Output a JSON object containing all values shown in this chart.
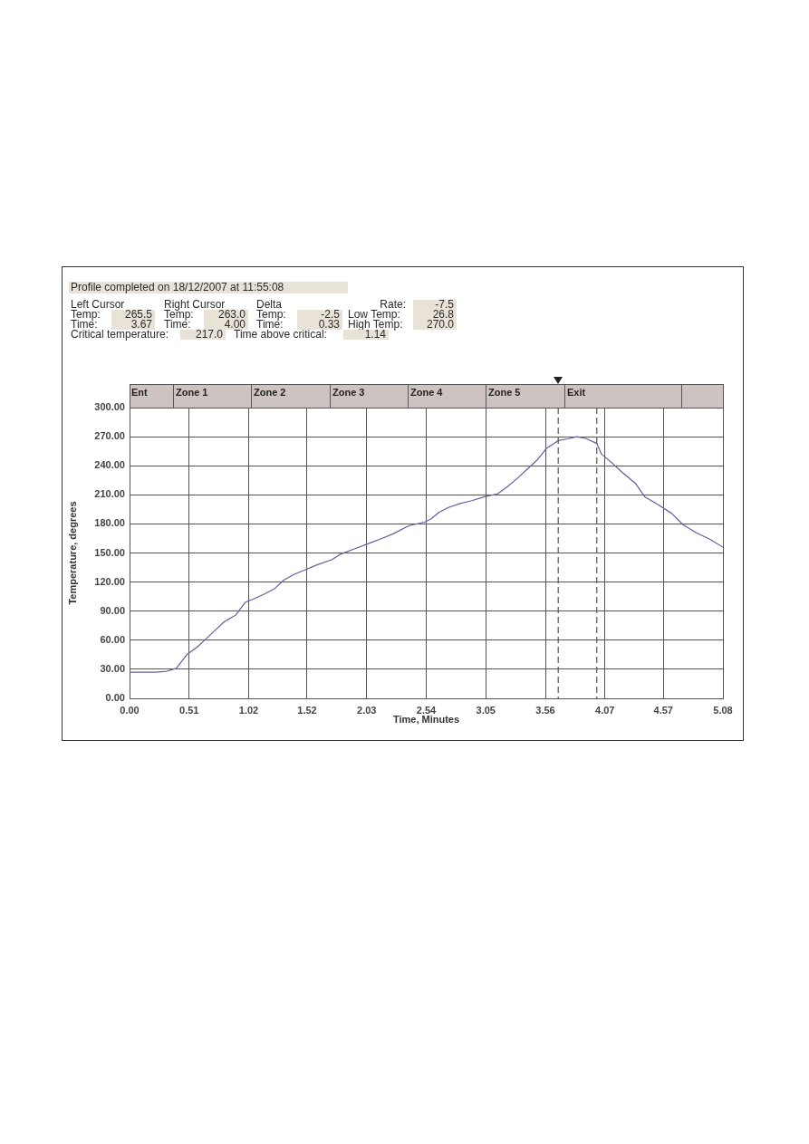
{
  "chart_data": {
    "type": "line",
    "title": "Profile completed on 18/12/2007 at 11:55:08",
    "xlabel": "Time, Minutes",
    "ylabel": "Temperature, degrees",
    "x": [
      0,
      0.22,
      0.32,
      0.4,
      0.49,
      0.58,
      0.66,
      0.73,
      0.81,
      0.91,
      0.99,
      1.07,
      1.16,
      1.24,
      1.32,
      1.41,
      1.51,
      1.61,
      1.73,
      1.81,
      1.92,
      2.03,
      2.16,
      2.26,
      2.39,
      2.53,
      2.58,
      2.65,
      2.73,
      2.83,
      2.93,
      3.04,
      3.15,
      3.23,
      3.32,
      3.4,
      3.49,
      3.57,
      3.67,
      3.76,
      3.83,
      3.91,
      4.0,
      4.04,
      4.12,
      4.22,
      4.33,
      4.41,
      4.51,
      4.64,
      4.74,
      4.85,
      4.97,
      5.08
    ],
    "series": [
      {
        "color": "#5f5fa0",
        "values": [
          27,
          27,
          28,
          31,
          45,
          53,
          62,
          70,
          79,
          86,
          99,
          103,
          108,
          113,
          122,
          128,
          133,
          138,
          143,
          149,
          154,
          159,
          165,
          170,
          178,
          182,
          185,
          192,
          197,
          201,
          204,
          208,
          211,
          218,
          227,
          236,
          246,
          258,
          266,
          268,
          270,
          268,
          263,
          252,
          244,
          233,
          222,
          208,
          201,
          191,
          179,
          171,
          164,
          156
        ]
      }
    ],
    "xlim": [
      0,
      5.08
    ],
    "xticks": [
      {
        "value": 0,
        "label": "0.00"
      },
      0.51,
      1.02,
      1.52,
      2.03,
      2.54,
      3.05,
      3.56,
      4.07,
      4.57,
      5.08
    ],
    "ylim": [
      0,
      300
    ],
    "yticks": [
      {
        "value": 0,
        "label": "0.00"
      },
      {
        "value": 30,
        "label": "30.00"
      },
      {
        "value": 60,
        "label": "60.00"
      },
      {
        "value": 90,
        "label": "90.00"
      },
      {
        "value": 120,
        "label": "120.00"
      },
      {
        "value": 150,
        "label": "150.00"
      },
      {
        "value": 180,
        "label": "180.00"
      },
      {
        "value": 210,
        "label": "210.00"
      },
      {
        "value": 240,
        "label": "240.00"
      },
      {
        "value": 270,
        "label": "270.00"
      },
      {
        "value": 300,
        "label": "300.00"
      }
    ],
    "grid": true,
    "ref_lines": [
      {
        "axis": "x",
        "value": 3.67,
        "color": "#555555",
        "line_style": "dashed"
      },
      {
        "axis": "x",
        "value": 4.0,
        "color": "#555555",
        "line_style": "dashed"
      }
    ],
    "annotations": [
      "Left Cursor",
      "Right Cursor",
      "Delta",
      "Rate:",
      "-7.5",
      "Temp:",
      "265.5",
      "Temp:",
      "263.0",
      "Temp:",
      "-2.5",
      "Low Temp:",
      "26.8",
      "Time:",
      "3.67",
      "Time:",
      "4.00",
      "Time:",
      "0.33",
      "High Temp:",
      "270.0",
      "Critical temperature:",
      "217.0",
      "Time above critical:",
      "1.14",
      "Ent",
      "Zone 1",
      "Zone 2",
      "Zone 3",
      "Zone 4",
      "Zone 5",
      "Exit"
    ]
  }
}
